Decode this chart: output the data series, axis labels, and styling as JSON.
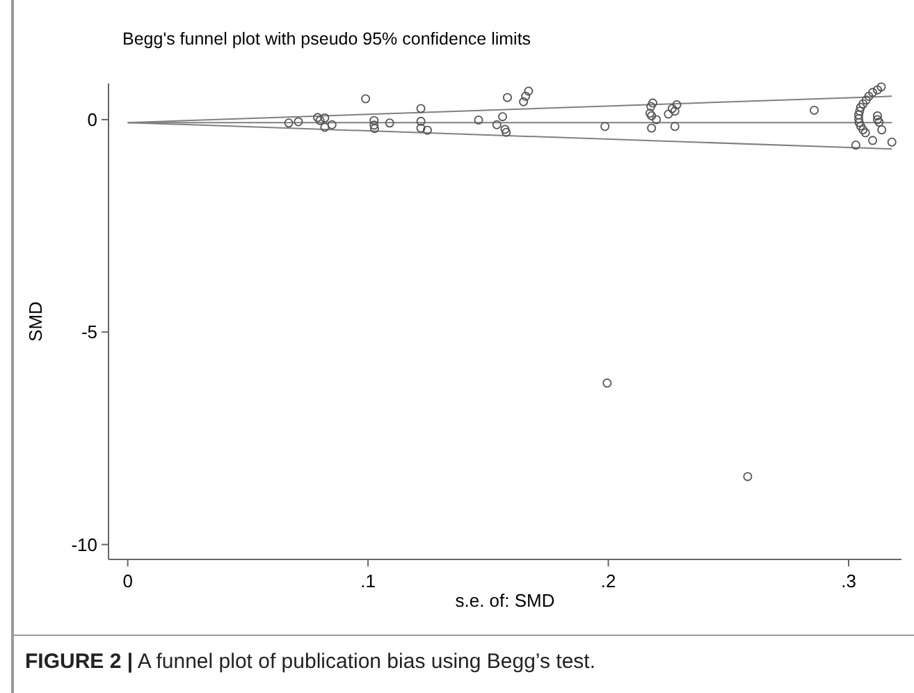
{
  "chart_data": {
    "type": "scatter",
    "title": "Begg's funnel plot with pseudo 95% confidence limits",
    "xlabel": "s.e. of: SMD",
    "ylabel": "SMD",
    "annotations": [
      "FIGURE 2 | A funnel plot of publication bias using Begg’s test."
    ],
    "xlim": [
      -0.008,
      0.322
    ],
    "ylim": [
      -10.35,
      0.85
    ],
    "xticks": [
      0,
      {
        "value": 0.1,
        "label": ".1"
      },
      {
        "value": 0.2,
        "label": ".2"
      },
      {
        "value": 0.3,
        "label": ".3"
      }
    ],
    "yticks": [
      -10,
      -5,
      0
    ],
    "grid": false,
    "series": [
      {
        "type": "line",
        "color": "#808080",
        "marker": "none",
        "line_style": "solid",
        "x": [
          0,
          0.318
        ],
        "values": [
          -0.07,
          -0.07
        ]
      },
      {
        "type": "line",
        "color": "#808080",
        "marker": "none",
        "line_style": "solid",
        "x": [
          0,
          0.318
        ],
        "values": [
          -0.07,
          0.55
        ]
      },
      {
        "type": "line",
        "color": "#808080",
        "marker": "none",
        "line_style": "solid",
        "x": [
          0,
          0.318
        ],
        "values": [
          -0.07,
          -0.69
        ]
      },
      {
        "color": "#555555",
        "marker": "circle",
        "x": [
          0.067,
          0.071,
          0.079,
          0.08,
          0.082,
          0.082,
          0.085,
          0.099,
          0.1025,
          0.1025,
          0.1027,
          0.109,
          0.122,
          0.122,
          0.122,
          0.1247,
          0.146,
          0.1536,
          0.156,
          0.157,
          0.1575,
          0.158,
          0.1647,
          0.1656,
          0.1668,
          0.1986,
          0.1995,
          0.2185,
          0.2177,
          0.2173,
          0.218,
          0.22,
          0.218,
          0.225,
          0.2266,
          0.2285,
          0.2277,
          0.2277,
          0.258,
          0.2857,
          0.3136,
          0.312,
          0.31,
          0.3084,
          0.3073,
          0.306,
          0.305,
          0.3046,
          0.3042,
          0.3042,
          0.3044,
          0.305,
          0.306,
          0.307,
          0.312,
          0.312,
          0.3127,
          0.3138,
          0.303,
          0.31,
          0.318
        ],
        "values": [
          -0.08,
          -0.05,
          0.05,
          -0.02,
          0.04,
          -0.18,
          -0.12,
          0.49,
          -0.02,
          -0.13,
          -0.21,
          -0.08,
          0.26,
          -0.04,
          -0.2,
          -0.25,
          -0.01,
          -0.12,
          0.07,
          -0.23,
          -0.3,
          0.52,
          0.42,
          0.55,
          0.67,
          -0.16,
          -6.2,
          0.39,
          0.31,
          0.15,
          0.09,
          0.0,
          -0.2,
          0.13,
          0.26,
          0.35,
          0.2,
          -0.16,
          -8.4,
          0.22,
          0.77,
          0.7,
          0.64,
          0.55,
          0.46,
          0.37,
          0.29,
          0.2,
          0.11,
          0.02,
          -0.07,
          -0.15,
          -0.24,
          -0.31,
          0.09,
          0.0,
          -0.06,
          -0.24,
          -0.6,
          -0.49,
          -0.53
        ]
      }
    ]
  }
}
